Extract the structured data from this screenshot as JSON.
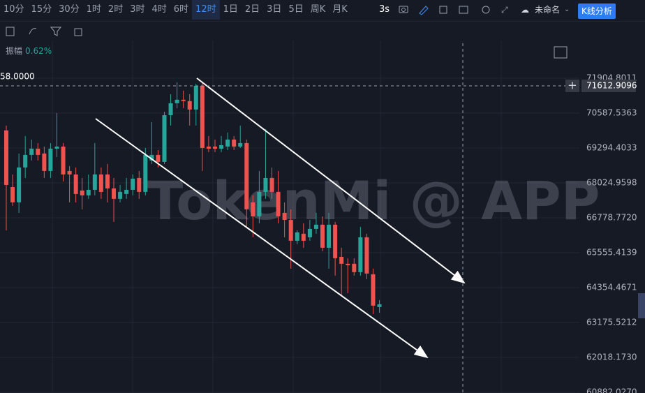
{
  "toolbar": {
    "intervals": [
      "10分",
      "15分",
      "30分",
      "1时",
      "2时",
      "3时",
      "4时",
      "6时",
      "12时",
      "1日",
      "2日",
      "3日",
      "5日",
      "周K",
      "月K"
    ],
    "refresh": "3s",
    "layout_name": "未命名",
    "analysis_button": "K线分析"
  },
  "amplitude": {
    "label": "振幅",
    "value": "0.62%"
  },
  "chart_data": {
    "type": "candlestick",
    "log_scale": true,
    "grid": true,
    "watermark": "TokenMi @ APP",
    "price_line_label": "58.0000",
    "crosshair_price": 71612.9096,
    "up_color": "#26a69a",
    "down_color": "#ef5350",
    "ylim": [
      60859,
      73355
    ],
    "yticks": [
      71904.8011,
      70587.5363,
      69294.4033,
      68024.9598,
      {
        "value": 66778.772,
        "label": "66778.7720"
      },
      65555.4139,
      64354.4671,
      63175.5212,
      {
        "value": 62018.173,
        "label": "62018.1730"
      },
      {
        "value": 60882.027,
        "label": "60882.0270"
      }
    ],
    "open": [
      69942,
      67875,
      67327,
      68583,
      69040,
      69269,
      69091,
      68456,
      69269,
      69346,
      68456,
      68329,
      67751,
      67576,
      67776,
      68329,
      68329,
      67826,
      67452,
      67626,
      67776,
      68203,
      67701,
      68837,
      69040,
      68787,
      70510,
      70957,
      71088,
      71036,
      70720,
      71615,
      69346,
      69346,
      69269,
      69346,
      69605,
      69346,
      69476,
      67327,
      66829,
      67701,
      68203,
      67701,
      66954,
      66705,
      65971,
      66216,
      66094,
      66387,
      66534,
      65727,
      66534,
      65411,
      65171,
      65171,
      64883,
      66094,
      64811,
      63694
    ],
    "high": [
      70123,
      68329,
      69091,
      69734,
      69605,
      69476,
      69346,
      69476,
      70588,
      69476,
      68634,
      68583,
      68203,
      68329,
      69476,
      68583,
      68710,
      68203,
      67950,
      68203,
      68329,
      68456,
      69294,
      70252,
      69218,
      70641,
      71299,
      71747,
      71431,
      71299,
      71694,
      71747,
      69734,
      69605,
      69734,
      69864,
      69734,
      70123,
      69605,
      67576,
      68456,
      69994,
      68583,
      68456,
      67327,
      67078,
      66338,
      66583,
      66705,
      66954,
      66829,
      66954,
      66632,
      65727,
      65363,
      65363,
      66461,
      66216,
      65003,
      63930
    ],
    "low": [
      66338,
      67203,
      66954,
      68203,
      68837,
      68837,
      68203,
      68203,
      68964,
      68076,
      67327,
      67327,
      67078,
      67452,
      67576,
      67452,
      67327,
      66632,
      67327,
      67452,
      67576,
      67452,
      67576,
      68710,
      68583,
      68710,
      70123,
      70773,
      70773,
      70123,
      70123,
      68456,
      69142,
      69142,
      69142,
      69218,
      69218,
      69294,
      66461,
      66094,
      66583,
      67452,
      67452,
      66583,
      66094,
      65003,
      65849,
      65727,
      65971,
      66216,
      65604,
      65003,
      64763,
      64048,
      64166,
      64763,
      64763,
      64643,
      63458,
      63505
    ],
    "close": [
      67950,
      67327,
      68583,
      69040,
      69269,
      69040,
      68456,
      69269,
      69346,
      68329,
      68329,
      67626,
      67576,
      67776,
      68329,
      67701,
      67826,
      67452,
      67701,
      67776,
      68177,
      67701,
      69040,
      69040,
      68787,
      70510,
      70957,
      71088,
      71036,
      70720,
      71615,
      69294,
      69269,
      69269,
      69398,
      69605,
      69346,
      69476,
      67078,
      66829,
      67701,
      68203,
      67701,
      66829,
      66705,
      65971,
      66265,
      65971,
      66387,
      66534,
      65727,
      66534,
      65363,
      65171,
      65123,
      64883,
      66094,
      64835,
      63741,
      63788
    ]
  }
}
